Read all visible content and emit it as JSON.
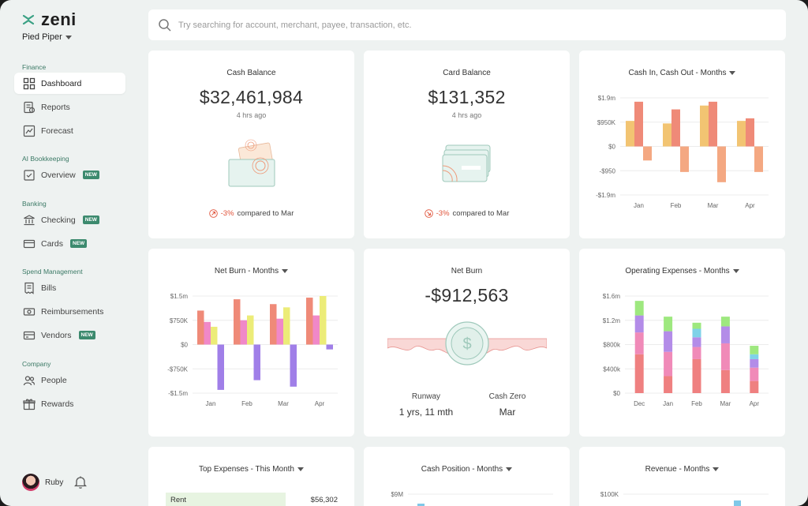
{
  "app": {
    "brand": "zeni",
    "org": "Pied Piper"
  },
  "sidebar": {
    "sections": [
      {
        "label": "Finance"
      },
      {
        "label": "AI Bookkeeping"
      },
      {
        "label": "Banking"
      },
      {
        "label": "Spend Management"
      },
      {
        "label": "Company"
      }
    ],
    "items": [
      {
        "label": "Dashboard",
        "icon": "grid-icon",
        "active": true
      },
      {
        "label": "Reports",
        "icon": "reports-icon"
      },
      {
        "label": "Forecast",
        "icon": "forecast-icon"
      },
      {
        "label": "Overview",
        "icon": "overview-icon",
        "badge": "NEW"
      },
      {
        "label": "Checking",
        "icon": "bank-icon",
        "badge": "NEW"
      },
      {
        "label": "Cards",
        "icon": "card-icon",
        "badge": "NEW"
      },
      {
        "label": "Bills",
        "icon": "bills-icon"
      },
      {
        "label": "Reimbursements",
        "icon": "reimbursements-icon"
      },
      {
        "label": "Vendors",
        "icon": "vendors-icon",
        "badge": "NEW"
      },
      {
        "label": "People",
        "icon": "people-icon"
      },
      {
        "label": "Rewards",
        "icon": "rewards-icon"
      }
    ],
    "user": {
      "name": "Ruby"
    }
  },
  "search": {
    "placeholder": "Try searching for account, merchant, payee, transaction, etc."
  },
  "cards": {
    "cash_balance": {
      "title": "Cash Balance",
      "value": "$32,461,984",
      "updated": "4 hrs ago",
      "delta": "-3%",
      "delta_text": "compared to Mar"
    },
    "card_balance": {
      "title": "Card Balance",
      "value": "$131,352",
      "updated": "4 hrs ago",
      "delta": "-3%",
      "delta_text": "compared to Mar"
    },
    "cash_in_out": {
      "title": "Cash In, Cash Out - Months"
    },
    "net_burn_chart": {
      "title": "Net Burn - Months"
    },
    "net_burn": {
      "title": "Net Burn",
      "value": "-$912,563",
      "runway_label": "Runway",
      "runway_value": "1 yrs, 11 mth",
      "cash_zero_label": "Cash Zero",
      "cash_zero_value": "Mar"
    },
    "operating_expenses": {
      "title": "Operating Expenses - Months"
    },
    "top_expenses": {
      "title": "Top Expenses - This Month",
      "rows": [
        {
          "name": "Rent",
          "amount": "$56,302"
        }
      ]
    },
    "cash_position": {
      "title": "Cash Position - Months"
    },
    "revenue": {
      "title": "Revenue - Months"
    }
  },
  "chart_data": [
    {
      "id": "cash_in_out",
      "type": "bar",
      "categories": [
        "Jan",
        "Feb",
        "Mar",
        "Apr"
      ],
      "y_ticks": [
        "$1.9m",
        "$950K",
        "$0",
        "-$950",
        "-$1.9m"
      ],
      "ylim": [
        -1.9,
        1.9
      ],
      "series": [
        {
          "color": "#f2c472",
          "values": [
            1.0,
            0.9,
            1.6,
            1.0
          ]
        },
        {
          "color": "#ef8a78",
          "values": [
            1.75,
            1.45,
            1.75,
            1.1
          ]
        },
        {
          "color": "#f4a882",
          "values": [
            -0.55,
            -1.0,
            -1.4,
            -1.0
          ]
        }
      ]
    },
    {
      "id": "net_burn",
      "type": "bar",
      "categories": [
        "Jan",
        "Feb",
        "Mar",
        "Apr"
      ],
      "y_ticks": [
        "$1.5m",
        "$750K",
        "$0",
        "-$750K",
        "-$1.5m"
      ],
      "ylim": [
        -1.5,
        1.5
      ],
      "series": [
        {
          "color": "#ef8a78",
          "values": [
            1.05,
            1.4,
            1.25,
            1.45
          ]
        },
        {
          "color": "#f088c8",
          "values": [
            0.7,
            0.75,
            0.8,
            0.9
          ]
        },
        {
          "color": "#ecec78",
          "values": [
            0.55,
            0.9,
            1.15,
            1.5
          ]
        },
        {
          "color": "#a07fe8",
          "values": [
            -1.4,
            -1.1,
            -1.3,
            -0.15
          ]
        }
      ]
    },
    {
      "id": "operating_expenses",
      "type": "bar",
      "categories": [
        "Dec",
        "Jan",
        "Feb",
        "Mar",
        "Apr"
      ],
      "y_ticks": [
        "$1.6m",
        "$1.2m",
        "$800k",
        "$400k",
        "$0"
      ],
      "ylim": [
        0,
        1.6
      ],
      "stacked": true,
      "series": [
        {
          "color": "#ef8080",
          "values": [
            0.64,
            0.28,
            0.56,
            0.38,
            0.2
          ]
        },
        {
          "color": "#f08ab8",
          "values": [
            0.36,
            0.4,
            0.2,
            0.44,
            0.22
          ]
        },
        {
          "color": "#b38ce8",
          "values": [
            0.28,
            0.34,
            0.16,
            0.28,
            0.14
          ]
        },
        {
          "color": "#7fd2e8",
          "values": [
            0.0,
            0.0,
            0.14,
            0.0,
            0.08
          ]
        },
        {
          "color": "#9ee87f",
          "values": [
            0.24,
            0.24,
            0.1,
            0.16,
            0.14
          ]
        }
      ]
    },
    {
      "id": "cash_position",
      "type": "bar",
      "y_ticks": [
        "$9M"
      ]
    },
    {
      "id": "revenue",
      "type": "bar",
      "y_ticks": [
        "$100K"
      ]
    }
  ]
}
